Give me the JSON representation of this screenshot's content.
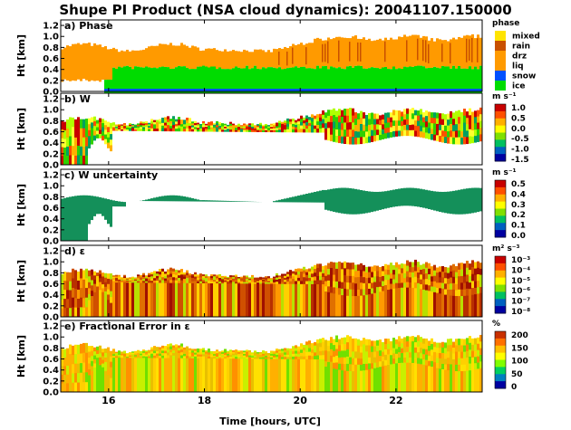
{
  "title": "Shupe PI Product (NSA cloud dynamics): 20041107.150000",
  "xlabel": "Time [hours, UTC]",
  "ylabel": "Ht [km]",
  "colors": {
    "mixed": "#ffe400",
    "rain": "#c85000",
    "drz": "#ff9a00",
    "liq": "#ff9a00",
    "snow": "#0050ff",
    "ice": "#00dc00",
    "uncert": "#14905a"
  },
  "chart_data": [
    {
      "type": "heatmap",
      "panel_title": "a) Phase",
      "ylabel": "Ht [km]",
      "ylim": [
        0.0,
        1.3
      ],
      "yticks": [
        "0.0",
        "0.2",
        "0.4",
        "0.6",
        "0.8",
        "1.0",
        "1.2"
      ],
      "xlim": [
        15,
        23.8
      ],
      "legend_title": "phase",
      "legend": [
        {
          "label": "mixed",
          "color": "#ffe400"
        },
        {
          "label": "rain",
          "color": "#c85000"
        },
        {
          "label": "drz",
          "color": "#ff9a00"
        },
        {
          "label": "liq",
          "color": "#ff9a00"
        },
        {
          "label": "snow",
          "color": "#0050ff"
        },
        {
          "label": "ice",
          "color": "#00dc00"
        }
      ]
    },
    {
      "type": "heatmap",
      "panel_title": "b) W",
      "ylabel": "Ht [km]",
      "ylim": [
        0.0,
        1.3
      ],
      "yticks": [
        "0.0",
        "0.2",
        "0.4",
        "0.6",
        "0.8",
        "1.0",
        "1.2"
      ],
      "colorbar_unit": "m s⁻¹",
      "colorbar_ticks": [
        "1.0",
        "0.5",
        "0.0",
        "-0.5",
        "-1.0",
        "-1.5"
      ]
    },
    {
      "type": "heatmap",
      "panel_title": "c) W uncertainty",
      "ylabel": "Ht [km]",
      "ylim": [
        0.0,
        1.3
      ],
      "yticks": [
        "0.0",
        "0.2",
        "0.4",
        "0.6",
        "0.8",
        "1.0",
        "1.2"
      ],
      "colorbar_unit": "m s⁻¹",
      "colorbar_ticks": [
        "0.5",
        "0.4",
        "0.3",
        "0.2",
        "0.1",
        "0.0"
      ]
    },
    {
      "type": "heatmap",
      "panel_title": "d) ε",
      "ylabel": "Ht [km]",
      "ylim": [
        0.0,
        1.3
      ],
      "yticks": [
        "0.0",
        "0.2",
        "0.4",
        "0.6",
        "0.8",
        "1.0",
        "1.2"
      ],
      "colorbar_unit": "m² s⁻³",
      "colorbar_ticks": [
        "10⁻³",
        "10⁻⁴",
        "10⁻⁵",
        "10⁻⁶",
        "10⁻⁷",
        "10⁻⁸"
      ]
    },
    {
      "type": "heatmap",
      "panel_title": "e) Fractional Error in ε",
      "ylabel": "Ht [km]",
      "ylim": [
        0.0,
        1.3
      ],
      "yticks": [
        "0.0",
        "0.2",
        "0.4",
        "0.6",
        "0.8",
        "1.0",
        "1.2"
      ],
      "colorbar_unit": "%",
      "colorbar_ticks": [
        "200",
        "150",
        "100",
        "50",
        "0"
      ]
    }
  ],
  "xticks": [
    {
      "value": 16,
      "label": "16"
    },
    {
      "value": 18,
      "label": "18"
    },
    {
      "value": 20,
      "label": "20"
    },
    {
      "value": 22,
      "label": "22"
    }
  ]
}
